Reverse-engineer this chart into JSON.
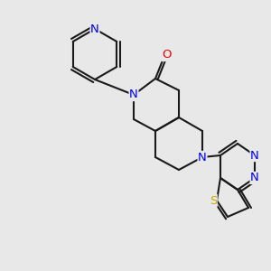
{
  "bg_color": "#e8e8e8",
  "bond_color": "#1a1a1a",
  "bond_width": 1.5,
  "atom_colors": {
    "N": "#0000ee",
    "O": "#ee0000",
    "S": "#ccaa00",
    "C": "#1a1a1a"
  },
  "font_size": 9.5,
  "font_size_small": 8.5
}
